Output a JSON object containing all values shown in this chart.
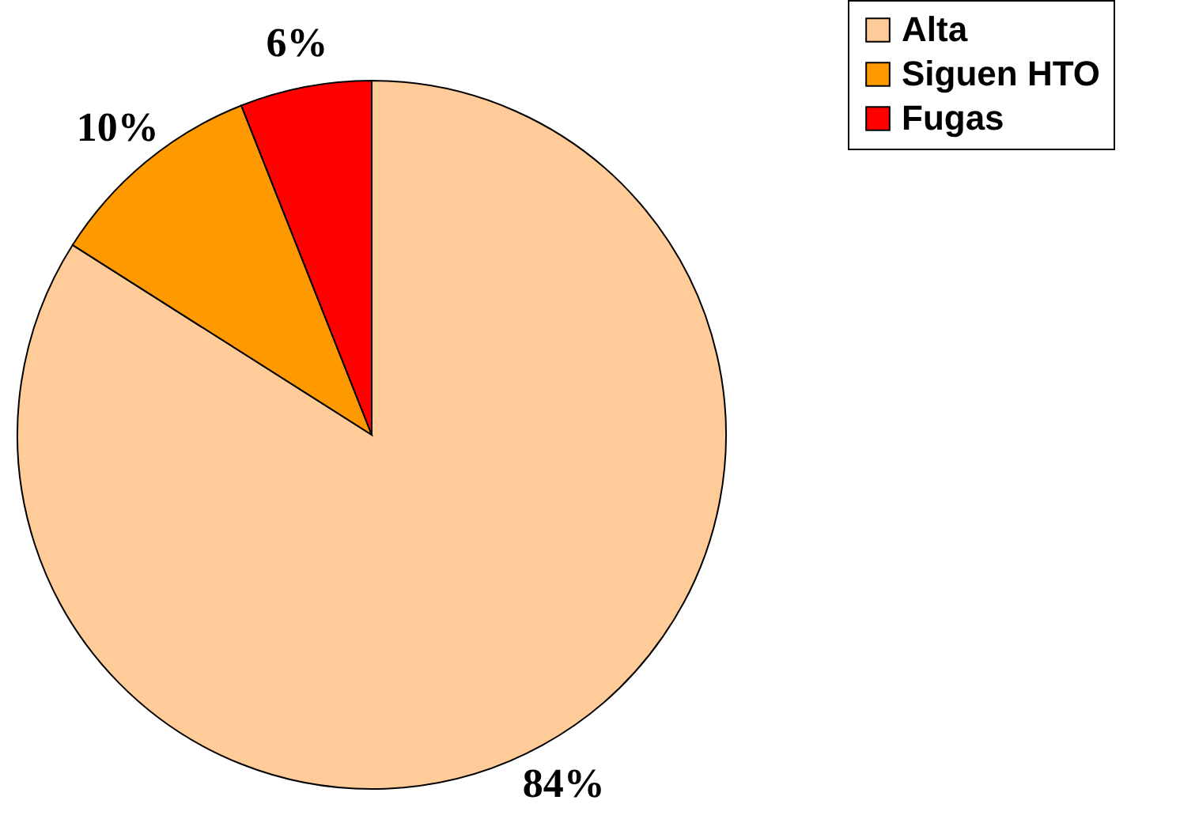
{
  "chart_data": {
    "type": "pie",
    "categories": [
      "Alta",
      "Siguen HTO",
      "Fugas"
    ],
    "values": [
      84,
      10,
      6
    ],
    "colors": [
      "#ffcc99",
      "#ff9900",
      "#ff0000"
    ],
    "value_labels": [
      "84%",
      "10%",
      "6%"
    ],
    "legend": "top right"
  }
}
